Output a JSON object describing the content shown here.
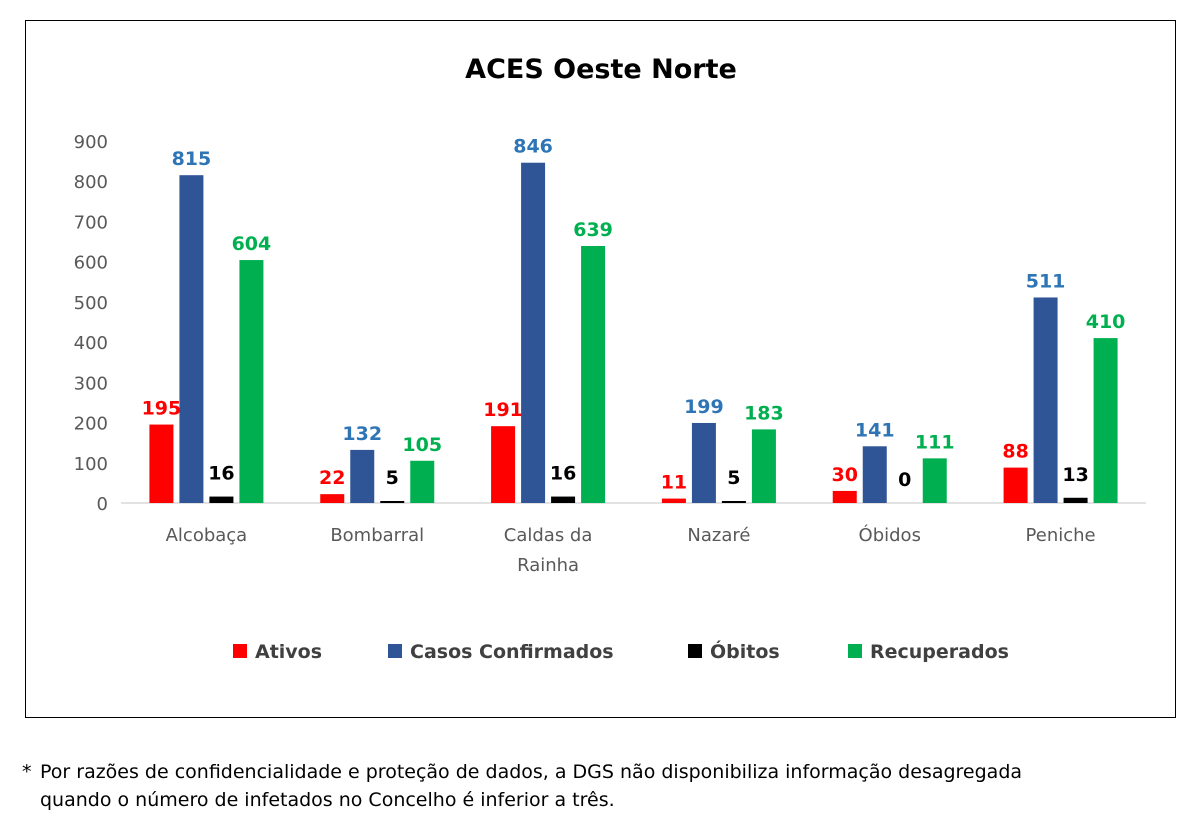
{
  "chart_data": {
    "type": "bar",
    "title": "ACES Oeste Norte",
    "categories": [
      [
        "Alcobaça"
      ],
      [
        "Bombarral"
      ],
      [
        "Caldas da",
        "Rainha"
      ],
      [
        "Nazaré"
      ],
      [
        "Óbidos"
      ],
      [
        "Peniche"
      ]
    ],
    "series": [
      {
        "name": "Ativos",
        "color": "#ff0000",
        "values": [
          195,
          22,
          191,
          11,
          30,
          88
        ]
      },
      {
        "name": "Casos Confirmados",
        "color": "#2f5597",
        "values": [
          815,
          132,
          846,
          199,
          141,
          511
        ]
      },
      {
        "name": "Óbitos",
        "color": "#000000",
        "values": [
          16,
          5,
          16,
          5,
          0,
          13
        ]
      },
      {
        "name": "Recuperados",
        "color": "#00b050",
        "values": [
          604,
          105,
          639,
          183,
          111,
          410
        ]
      }
    ],
    "label_colors": [
      "#ff0000",
      "#2e75b6",
      "#000000",
      "#00b050"
    ],
    "ylim": [
      0,
      900
    ],
    "yticks": [
      0,
      100,
      200,
      300,
      400,
      500,
      600,
      700,
      800,
      900
    ],
    "grid": false,
    "legend_position": "bottom"
  },
  "footnote": {
    "star": "*",
    "line1": "Por razões de confidencialidade e proteção de dados, a DGS não disponibiliza informação desagregada",
    "line2": "quando o número de infetados no Concelho é inferior a três."
  }
}
